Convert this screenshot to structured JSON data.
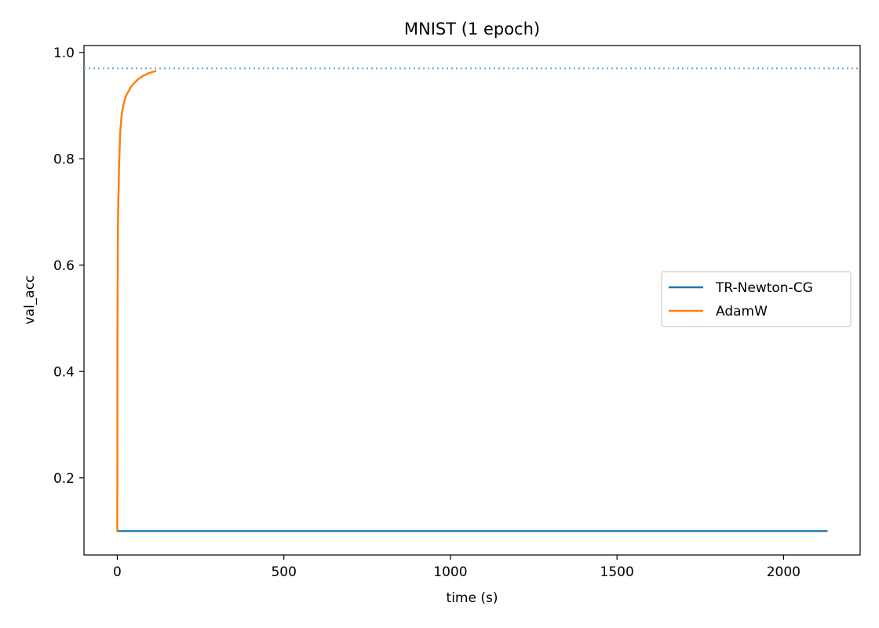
{
  "chart_data": {
    "type": "line",
    "title": "MNIST (1 epoch)",
    "xlabel": "time (s)",
    "ylabel": "val_acc",
    "xlim": [
      -100,
      2230
    ],
    "ylim": [
      0.055,
      1.013
    ],
    "xticks": [
      0,
      500,
      1000,
      1500,
      2000
    ],
    "yticks": [
      0.2,
      0.4,
      0.6,
      0.8,
      1.0
    ],
    "xtick_labels": [
      "0",
      "500",
      "1000",
      "1500",
      "2000"
    ],
    "ytick_labels": [
      "0.2",
      "0.4",
      "0.6",
      "0.8",
      "1.0"
    ],
    "grid": false,
    "legend_position": "center-right",
    "reference_line": {
      "orientation": "horizontal",
      "y": 0.97,
      "style": "dotted",
      "color": "#6baed6"
    },
    "series": [
      {
        "name": "TR-Newton-CG",
        "color": "#1f77b4",
        "x": [
          0,
          2130
        ],
        "y": [
          0.1,
          0.1
        ]
      },
      {
        "name": "AdamW",
        "color": "#ff7f0e",
        "x": [
          0,
          0.5,
          1,
          1.5,
          2,
          3,
          4,
          5,
          6,
          7,
          8,
          9,
          10,
          12,
          14,
          16,
          18,
          20,
          23,
          26,
          30,
          34,
          38,
          42,
          46,
          50,
          55,
          60,
          65,
          70,
          75,
          80,
          85,
          90,
          95,
          100,
          105,
          110,
          115
        ],
        "y": [
          0.1,
          0.46,
          0.55,
          0.62,
          0.68,
          0.72,
          0.74,
          0.78,
          0.8,
          0.82,
          0.84,
          0.85,
          0.86,
          0.875,
          0.885,
          0.893,
          0.9,
          0.905,
          0.912,
          0.918,
          0.923,
          0.927,
          0.932,
          0.936,
          0.939,
          0.942,
          0.945,
          0.948,
          0.951,
          0.953,
          0.955,
          0.957,
          0.958,
          0.96,
          0.961,
          0.962,
          0.963,
          0.964,
          0.965
        ]
      }
    ]
  }
}
